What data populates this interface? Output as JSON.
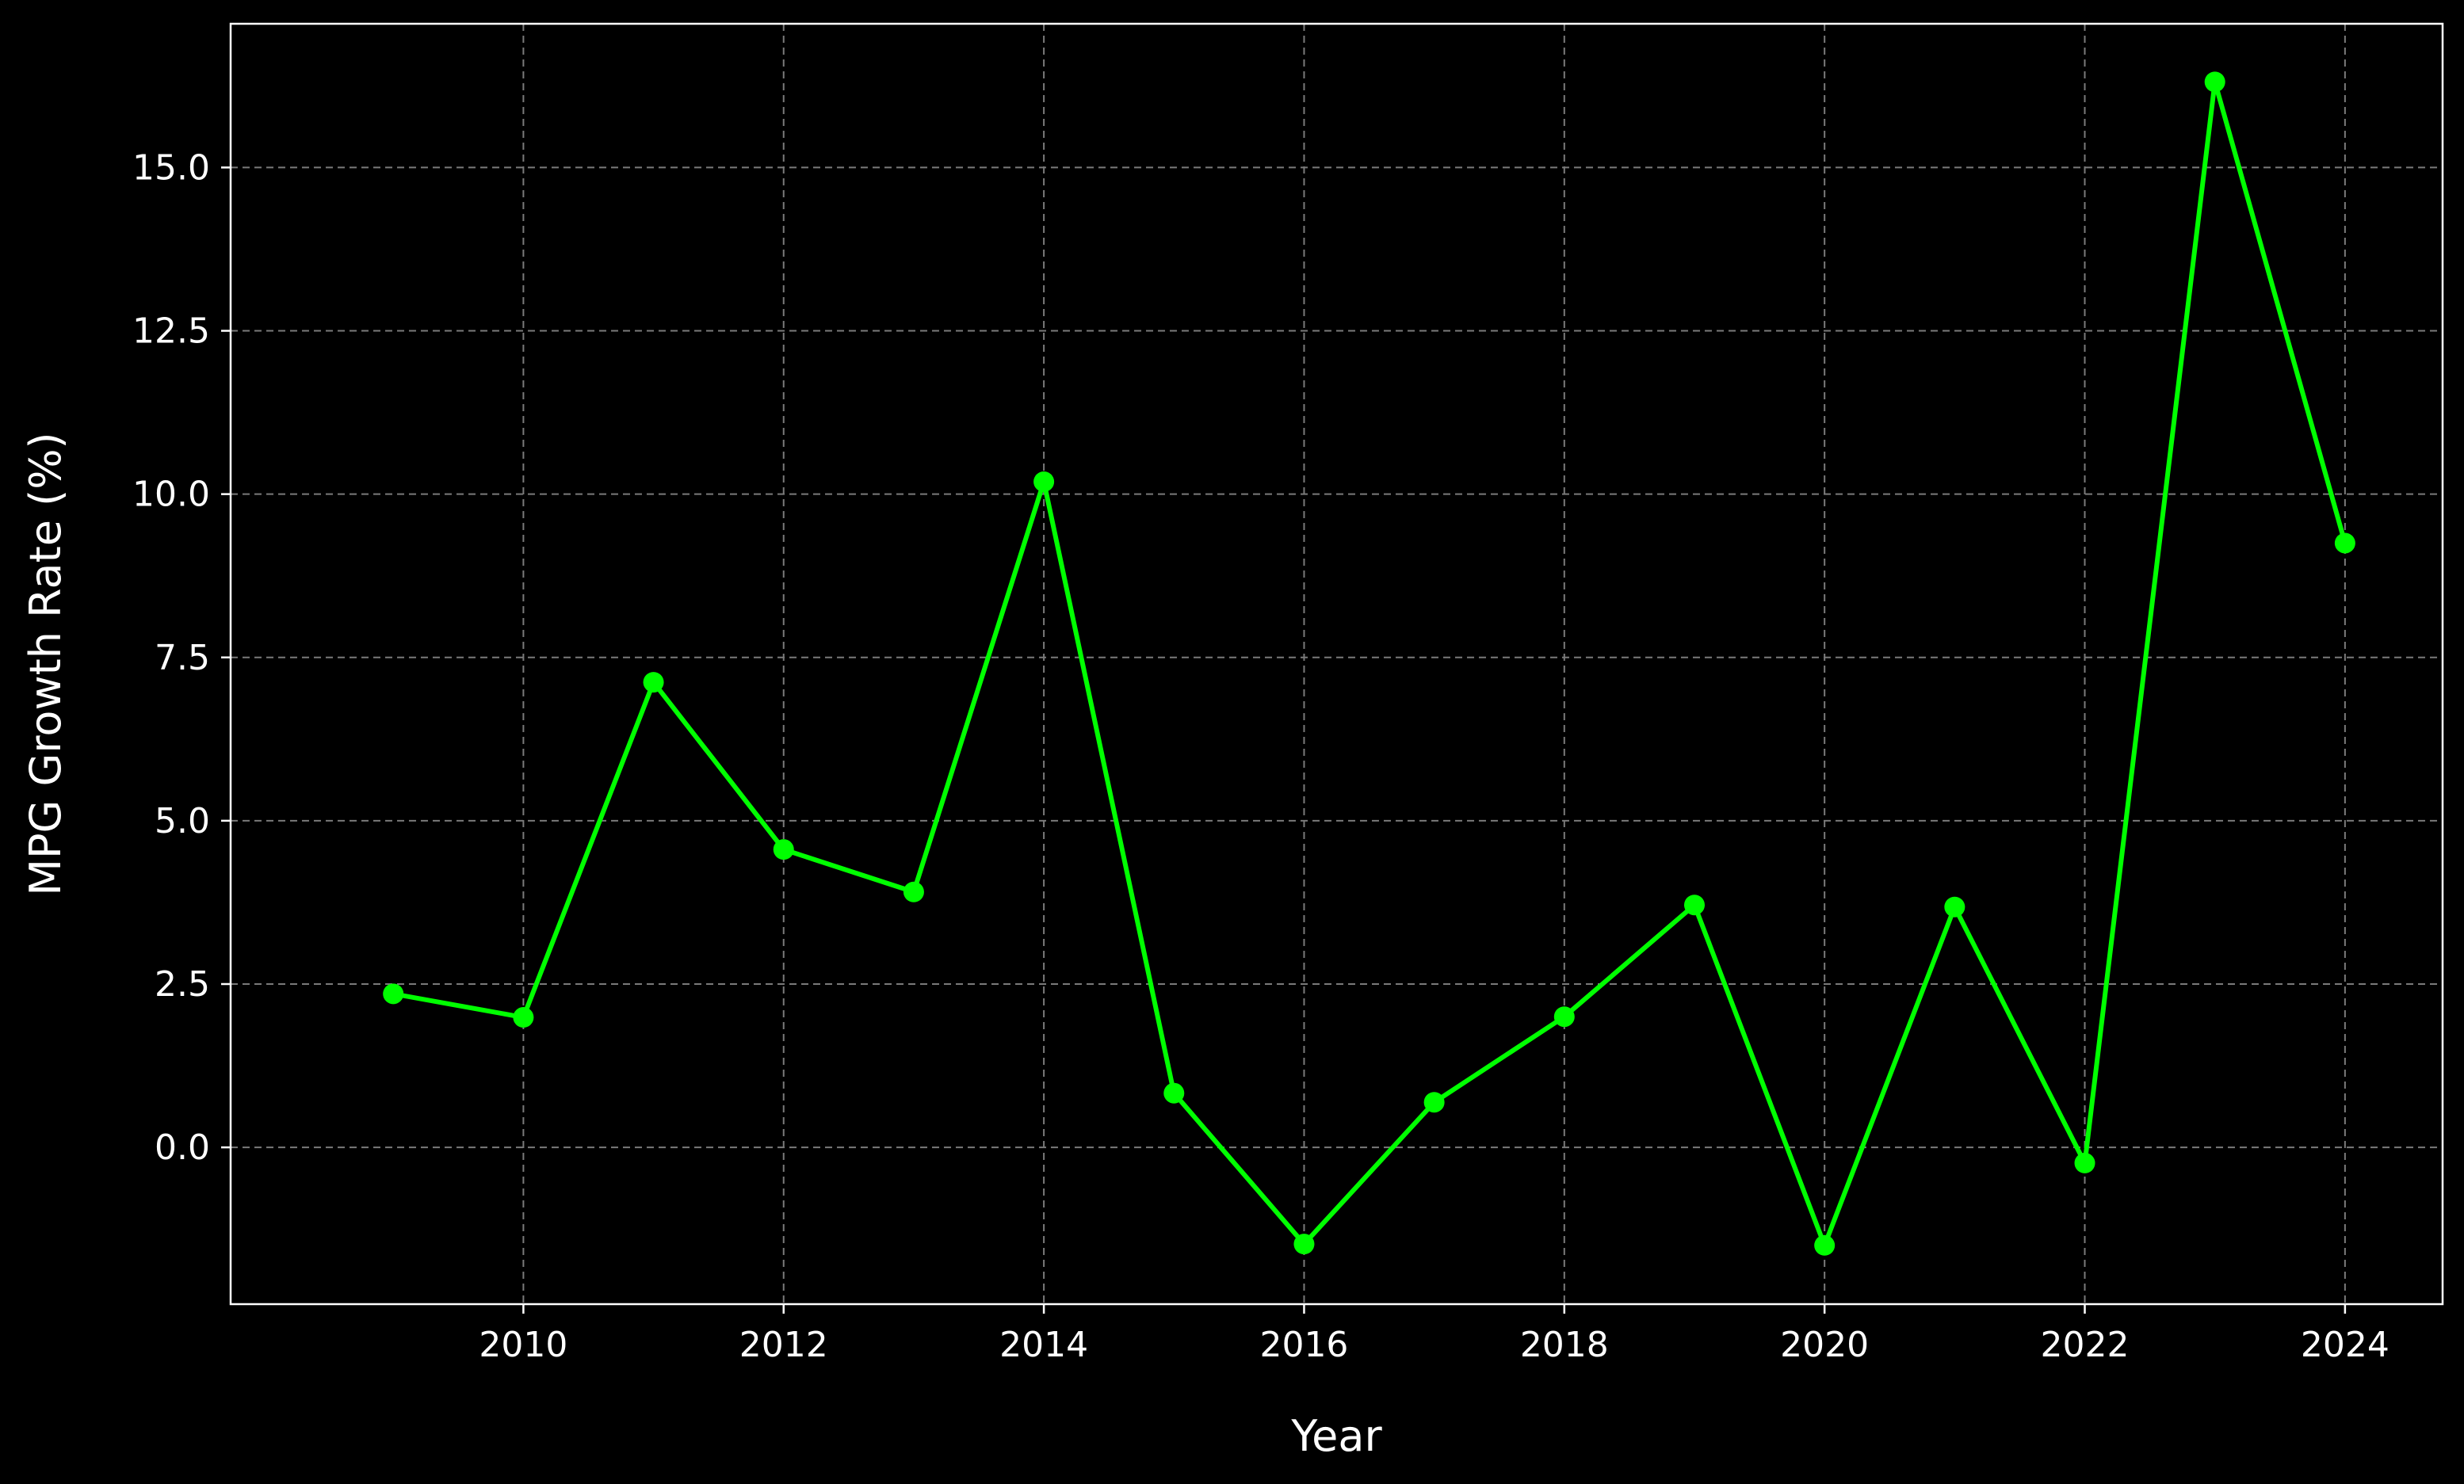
{
  "chart_data": {
    "type": "line",
    "title": "",
    "xlabel": "Year",
    "ylabel": "MPG Growth Rate (%)",
    "x": [
      2009,
      2010,
      2011,
      2012,
      2013,
      2014,
      2015,
      2016,
      2017,
      2018,
      2019,
      2020,
      2021,
      2022,
      2023,
      2024
    ],
    "series": [
      {
        "values": [
          2.35,
          1.99,
          7.12,
          4.56,
          3.91,
          10.19,
          0.83,
          -1.48,
          0.69,
          2.0,
          3.71,
          -1.5,
          3.68,
          -0.24,
          16.31,
          9.25
        ]
      }
    ],
    "xlim": [
      2007.75,
      2024.75
    ],
    "ylim": [
      -2.4,
      17.2
    ],
    "xticks": [
      2010,
      2012,
      2014,
      2016,
      2018,
      2020,
      2022,
      2024
    ],
    "xtick_labels": [
      "2010",
      "2012",
      "2014",
      "2016",
      "2018",
      "2020",
      "2022",
      "2024"
    ],
    "yticks": [
      0,
      2.5,
      5,
      7.5,
      10,
      12.5,
      15
    ],
    "ytick_labels": [
      "0.0",
      "2.5",
      "5.0",
      "7.5",
      "10.0",
      "12.5",
      "15.0"
    ],
    "grid": true,
    "legend": "none",
    "colors": {
      "background": "#000000",
      "line": "#00ff00",
      "text": "#ffffff",
      "grid": "#7a7a7a"
    }
  }
}
